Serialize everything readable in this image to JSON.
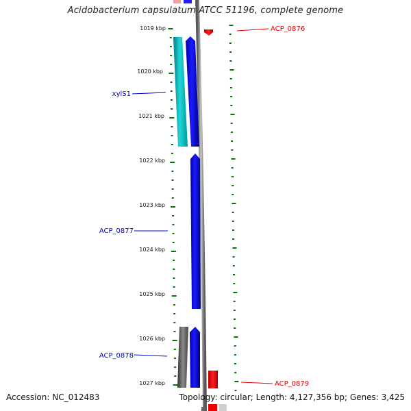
{
  "title": "Acidobacterium capsulatum ATCC 51196, complete genome",
  "footer": {
    "accession": "Accession: NC_012483",
    "summary": "Topology: circular; Length: 4,127,356 bp; Genes: 3,425"
  },
  "ticks": [
    "1019 kbp",
    "1020 kbp",
    "1021 kbp",
    "1022 kbp",
    "1023 kbp",
    "1024 kbp",
    "1025 kbp",
    "1026 kbp",
    "1027 kbp"
  ],
  "gene_labels": [
    {
      "text": "ACP_0876",
      "color": "#e00000"
    },
    {
      "text": "xylS1",
      "color": "#0000cc"
    },
    {
      "text": "ACP_0877",
      "color": "#0000cc"
    },
    {
      "text": "ACP_0878",
      "color": "#0000cc"
    },
    {
      "text": "ACP_0879",
      "color": "#e00000"
    }
  ],
  "colors": {
    "forward_cds": "#0000ee",
    "reverse_cds": "#ee0000",
    "rna": "#00bbbb",
    "other": "#555555",
    "tick": "#007700",
    "backbone": "#888888"
  }
}
